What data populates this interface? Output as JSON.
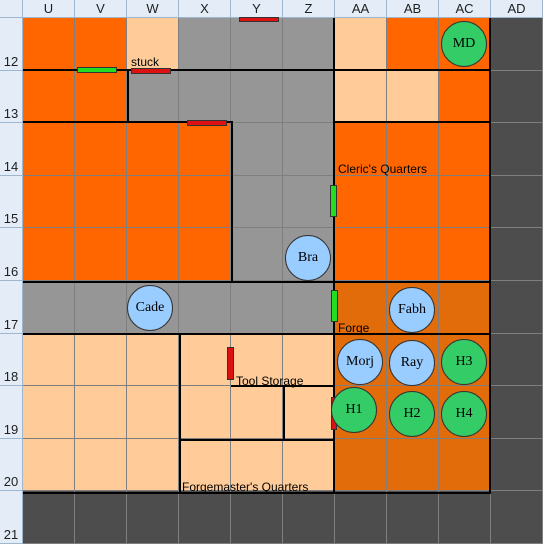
{
  "columns": [
    "U",
    "V",
    "W",
    "X",
    "Y",
    "Z",
    "AA",
    "AB",
    "AC",
    "AD"
  ],
  "rows": [
    "12",
    "13",
    "14",
    "15",
    "16",
    "17",
    "18",
    "19",
    "20",
    "21"
  ],
  "grid": [
    [
      "orange",
      "orange",
      "peach",
      "gray",
      "gray",
      "gray",
      "peach",
      "orange",
      "orange",
      "dark"
    ],
    [
      "orange",
      "orange",
      "gray",
      "gray",
      "gray",
      "gray",
      "peach",
      "peach",
      "orange",
      "dark"
    ],
    [
      "orange",
      "orange",
      "orange",
      "orange",
      "gray",
      "gray",
      "orange",
      "orange",
      "orange",
      "dark"
    ],
    [
      "orange",
      "orange",
      "orange",
      "orange",
      "gray",
      "gray",
      "orange",
      "orange",
      "orange",
      "dark"
    ],
    [
      "orange",
      "orange",
      "orange",
      "orange",
      "gray",
      "gray",
      "orange",
      "orange",
      "orange",
      "dark"
    ],
    [
      "gray",
      "gray",
      "gray",
      "gray",
      "gray",
      "gray",
      "forge",
      "forge",
      "forge",
      "dark"
    ],
    [
      "peach",
      "peach",
      "peach",
      "peach",
      "peach",
      "peach",
      "forge",
      "forge",
      "forge",
      "dark"
    ],
    [
      "peach",
      "peach",
      "peach",
      "peach",
      "peach",
      "peach",
      "forge",
      "forge",
      "forge",
      "dark"
    ],
    [
      "peach",
      "peach",
      "peach",
      "peach",
      "peach",
      "peach",
      "forge",
      "forge",
      "forge",
      "dark"
    ],
    [
      "dark",
      "dark",
      "dark",
      "dark",
      "dark",
      "dark",
      "dark",
      "dark",
      "dark",
      "dark"
    ]
  ],
  "colors": {
    "orange": "#ff6600",
    "peach": "#ffcc99",
    "gray": "#969696",
    "dark": "#4d4d4d",
    "forge": "#e26b0a",
    "token_blue": "#99ccff",
    "token_green": "#33cc66",
    "door_red": "#dd1111",
    "door_green": "#22dd22"
  },
  "labels": {
    "stuck": "stuck",
    "clerics_quarters": "Cleric's Quarters",
    "forge": "Forge",
    "tool_storage": "Tool Storage",
    "forgemasters_quarters": "Forgemaster's Quarters"
  },
  "tokens": {
    "md": "MD",
    "bra": "Bra",
    "cade": "Cade",
    "fabh": "Fabh",
    "morj": "Morj",
    "ray": "Ray",
    "h1": "H1",
    "h2": "H2",
    "h3": "H3",
    "h4": "H4"
  }
}
